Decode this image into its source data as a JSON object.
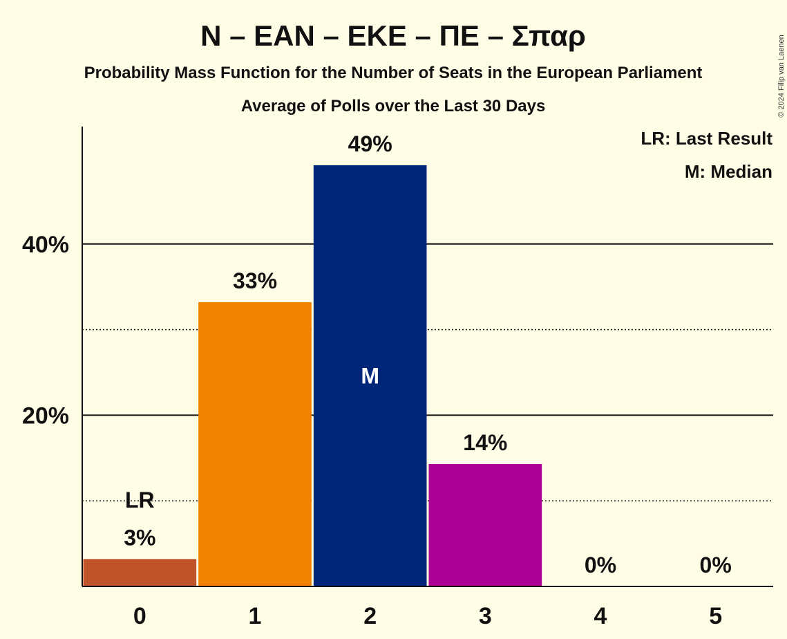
{
  "chart_data": {
    "type": "bar",
    "title": "N – ΕΑΝ – ΕΚΕ – ΠΕ – Σπαρ",
    "subtitle": "Probability Mass Function for the Number of Seats in the European Parliament",
    "subtitle2": "Average of Polls over the Last 30 Days",
    "categories": [
      "0",
      "1",
      "2",
      "3",
      "4",
      "5"
    ],
    "values": [
      3.2,
      33.2,
      49.2,
      14.3,
      0,
      0
    ],
    "value_labels": [
      "3%",
      "33%",
      "49%",
      "14%",
      "0%",
      "0%"
    ],
    "bar_colors": [
      "#C0532A",
      "#F08200",
      "#00267A",
      "#AC0095",
      null,
      null
    ],
    "ylim": [
      0,
      52
    ],
    "y_ticks": [
      {
        "value": 20,
        "label": "20%",
        "style": "solid"
      },
      {
        "value": 40,
        "label": "40%",
        "style": "solid"
      }
    ],
    "y_minor_gridlines": [
      10,
      30
    ],
    "last_result": {
      "category": "0",
      "marker": "LR",
      "value": 10
    },
    "median": {
      "category": "2",
      "marker": "M"
    },
    "legend": {
      "placement": "top-right",
      "items": [
        "LR: Last Result",
        "M: Median"
      ]
    },
    "copyright": "© 2024 Filip van Laenen"
  }
}
